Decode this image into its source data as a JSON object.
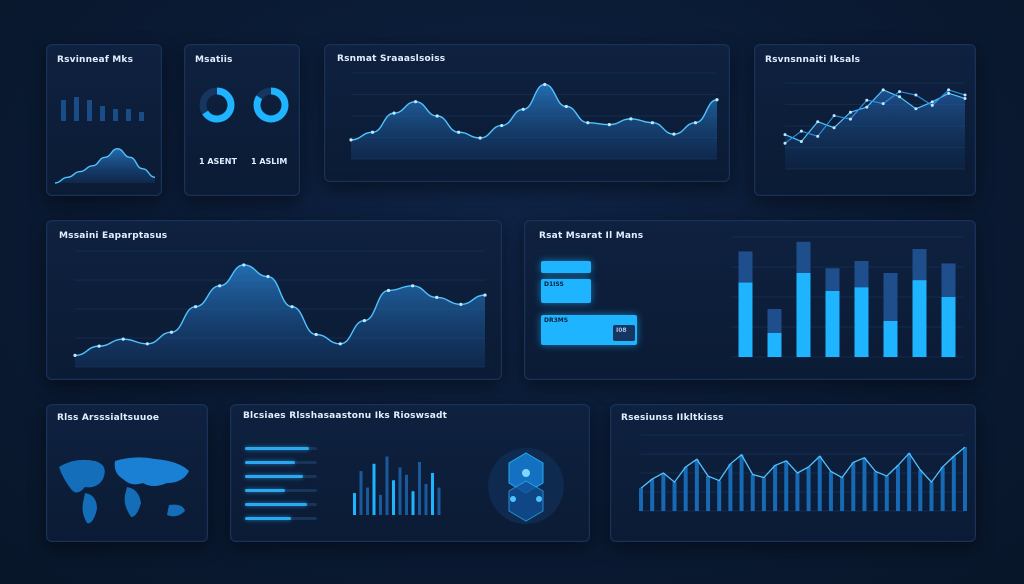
{
  "cards": {
    "c1": {
      "title": "Rsvinneaf Mks",
      "sub": "",
      "marker": ""
    },
    "c2": {
      "title": "Msatiis",
      "d1": "",
      "d2": "",
      "l1": "1 ASENT",
      "l2": "1 ASLIM"
    },
    "c3": {
      "title": "Rsnmat Sraaaslsoiss"
    },
    "c4": {
      "title": "Rsvnsnnaiti Iksals"
    },
    "c5": {
      "title": "Mssaini Eaparptasus"
    },
    "c6": {
      "title": "Rsat Msarat Il Mans",
      "t1": "D1ISS",
      "t2": "DR3MS",
      "v1": "I08"
    },
    "c7": {
      "title": "Rlss Arsssialtsuuoe"
    },
    "c8": {
      "title": "Blcsiaes Rlsshasaastonu Iks Rioswsadt"
    },
    "c9": {
      "title": "Rsesiunss IIkltkisss"
    }
  },
  "colors": {
    "accent": "#1eb4ff",
    "accent_dim": "#16355f",
    "card_bg": "#0e213f",
    "page_bg": "#0a1a33"
  },
  "chart_data": [
    {
      "type": "bar",
      "values": [
        7,
        8,
        7,
        5,
        4,
        4,
        3
      ]
    },
    {
      "type": "area",
      "values": [
        0,
        2,
        4,
        6,
        9,
        12,
        9,
        5,
        2
      ]
    },
    {
      "type": "area",
      "values": [
        20,
        28,
        48,
        60,
        45,
        28,
        22,
        35,
        52,
        78,
        55,
        38,
        36,
        42,
        38,
        26,
        38,
        62
      ]
    },
    {
      "type": "line",
      "series": [
        {
          "values": [
            40,
            32,
            55,
            48,
            66,
            72,
            92,
            84,
            70,
            78,
            88,
            82
          ]
        },
        {
          "values": [
            30,
            44,
            38,
            62,
            58,
            80,
            76,
            90,
            86,
            74,
            92,
            86
          ]
        }
      ]
    },
    {
      "type": "area",
      "values": [
        10,
        18,
        24,
        20,
        30,
        52,
        70,
        88,
        78,
        52,
        28,
        20,
        40,
        66,
        70,
        60,
        54,
        62
      ]
    },
    {
      "type": "bar",
      "series": [
        {
          "values": [
            88,
            40,
            96,
            74,
            80,
            70,
            90,
            78
          ]
        },
        {
          "values": [
            62,
            20,
            70,
            55,
            58,
            30,
            64,
            50
          ]
        }
      ]
    },
    {
      "type": "bar",
      "values": [
        24,
        48,
        30,
        56,
        22,
        64,
        38,
        52,
        44,
        26,
        58,
        34,
        46,
        30
      ]
    },
    {
      "type": "line",
      "values": [
        30,
        42,
        50,
        38,
        58,
        68,
        46,
        40,
        62,
        74,
        48,
        44,
        60,
        66,
        50,
        58,
        72,
        52,
        44,
        64,
        70,
        52,
        46,
        60,
        76,
        54,
        38,
        58,
        72,
        84
      ]
    }
  ]
}
